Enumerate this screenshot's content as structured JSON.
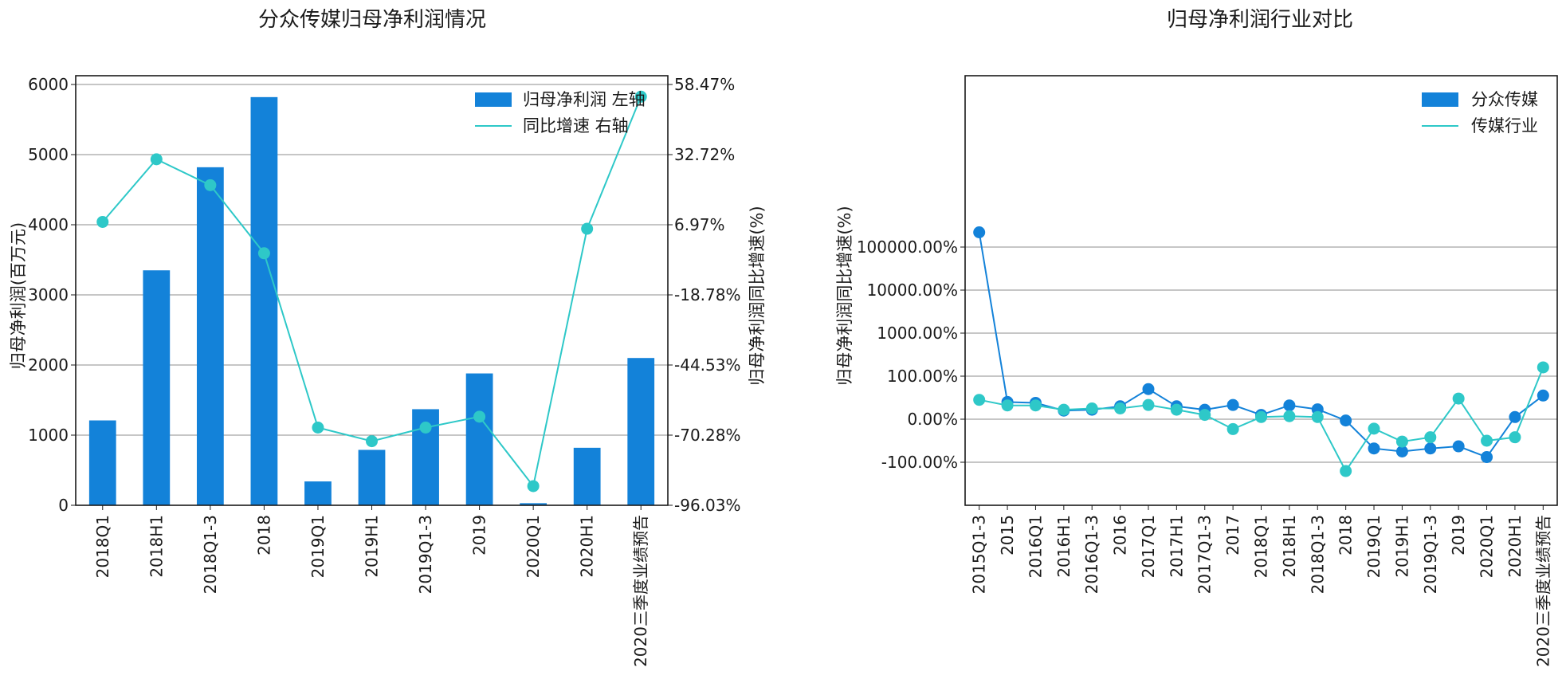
{
  "colors": {
    "bar": "#1382d9",
    "line": "#2ec8c8",
    "company": "#1382d9",
    "industry": "#2ec8c8"
  },
  "chart_data": [
    {
      "type": "bar",
      "title": "分众传媒归母净利润情况",
      "ylabel": "归母净利润(百万元)",
      "y2label": "归母净利润同比增速(%)",
      "categories": [
        "2018Q1",
        "2018H1",
        "2018Q1-3",
        "2018",
        "2019Q1",
        "2019H1",
        "2019Q1-3",
        "2019",
        "2020Q1",
        "2020H1",
        "2020三季度业绩预告"
      ],
      "ylim": [
        0,
        6000
      ],
      "yticks": [
        "0",
        "1000",
        "2000",
        "3000",
        "4000",
        "5000",
        "6000"
      ],
      "y2lim": [
        -96.03,
        58.47
      ],
      "y2ticks": [
        "-96.03%",
        "-70.28%",
        "-44.53%",
        "-18.78%",
        "6.97%",
        "32.72%",
        "58.47%"
      ],
      "legend_position": "top-right",
      "grid": true,
      "series": [
        {
          "name": "归母净利润 左轴",
          "kind": "bar",
          "axis": "left",
          "values": [
            1210,
            3350,
            4820,
            5820,
            340,
            790,
            1370,
            1880,
            30,
            820,
            2100
          ]
        },
        {
          "name": "同比增速 右轴",
          "kind": "line",
          "axis": "right",
          "values": [
            8.0,
            31.0,
            21.5,
            -3.5,
            -67.5,
            -72.5,
            -67.5,
            -63.5,
            -89.0,
            5.5,
            54.0
          ]
        }
      ]
    },
    {
      "type": "line",
      "title": "归母净利润行业对比",
      "ylabel": "归母净利润同比增速(%)",
      "categories": [
        "2015Q1-3",
        "2015",
        "2016Q1",
        "2016H1",
        "2016Q1-3",
        "2016",
        "2017Q1",
        "2017H1",
        "2017Q1-3",
        "2017",
        "2018Q1",
        "2018H1",
        "2018Q1-3",
        "2018",
        "2019Q1",
        "2019H1",
        "2019Q1-3",
        "2019",
        "2020Q1",
        "2020H1",
        "2020三季度业绩预告"
      ],
      "yscale": "symlog",
      "yticks": [
        {
          "value": -100,
          "label": "-100.00%"
        },
        {
          "value": 0,
          "label": "0.00%"
        },
        {
          "value": 100,
          "label": "100.00%"
        },
        {
          "value": 1000,
          "label": "1000.00%"
        },
        {
          "value": 10000,
          "label": "10000.00%"
        },
        {
          "value": 100000,
          "label": "100000.00%"
        }
      ],
      "legend_position": "top-right",
      "grid": true,
      "series": [
        {
          "name": "分众传媒",
          "values": [
            220000,
            40,
            38,
            20,
            22,
            30,
            70,
            30,
            22,
            33,
            10,
            32,
            23,
            -3,
            -68,
            -75,
            -68,
            -63,
            -88,
            5,
            55
          ]
        },
        {
          "name": "传媒行业",
          "values": [
            45,
            32,
            32,
            22,
            25,
            25,
            33,
            22,
            10,
            -23,
            5,
            7,
            5,
            -160,
            -22,
            -52,
            -42,
            48,
            -50,
            -42,
            160
          ]
        }
      ]
    }
  ]
}
